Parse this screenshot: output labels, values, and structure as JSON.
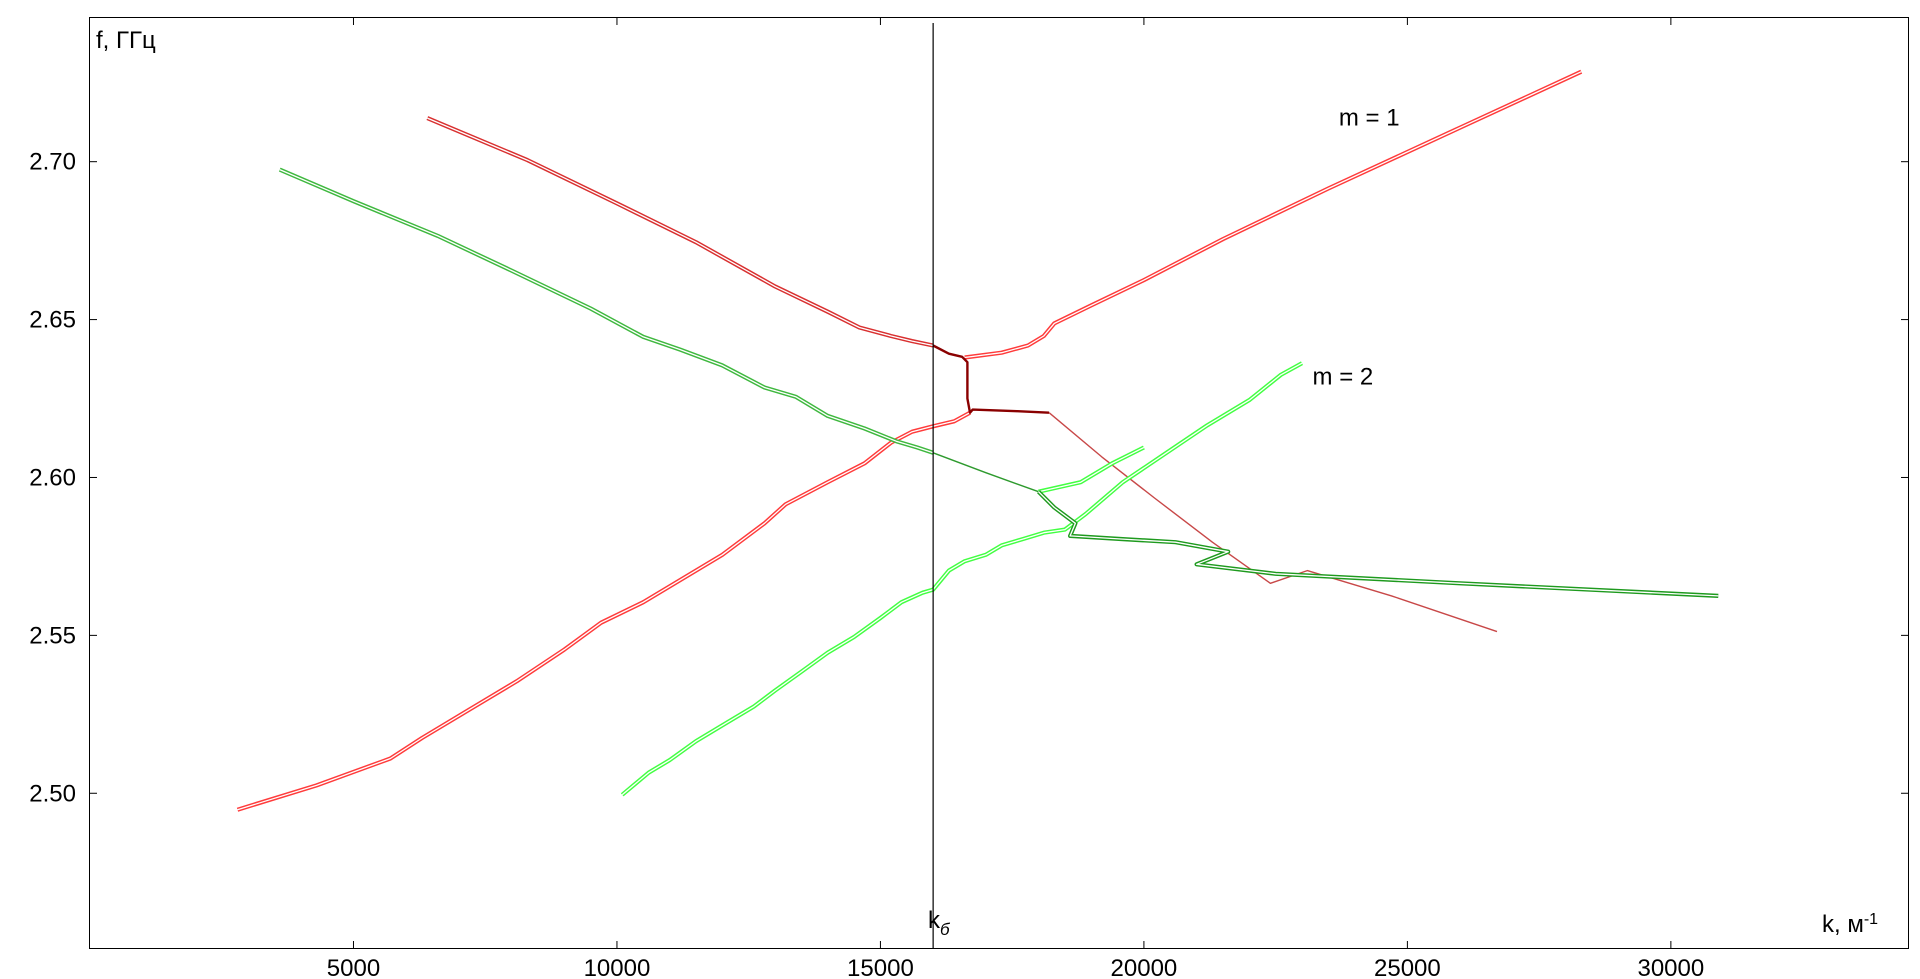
{
  "chart_data": {
    "type": "line",
    "ylabel": "f, ГГц",
    "xlabel": "k, м",
    "xlabel_sup": "-1",
    "xlim": [
      0,
      34500
    ],
    "ylim": [
      2.451,
      2.7455
    ],
    "xticks": [
      5000,
      10000,
      15000,
      20000,
      25000,
      30000
    ],
    "xtick_labels": [
      "5000",
      "10000",
      "15000",
      "20000",
      "25000",
      "30000"
    ],
    "yticks": [
      2.5,
      2.55,
      2.6,
      2.65,
      2.7
    ],
    "ytick_labels": [
      "2.50",
      "2.55",
      "2.60",
      "2.65",
      "2.70"
    ],
    "grid": false,
    "vline": {
      "x": 16000,
      "label": "k",
      "label_sub": "б"
    },
    "annotations": [
      {
        "text": "m = 1",
        "x": 23700,
        "y": 2.7115
      },
      {
        "text": "m = 2",
        "x": 23200,
        "y": 2.6294
      }
    ],
    "series": [
      {
        "color": "#ff3b3b",
        "style": "double",
        "points": [
          [
            2800,
            2.4948
          ],
          [
            4300,
            2.5025
          ],
          [
            5700,
            2.511
          ],
          [
            6300,
            2.5175
          ],
          [
            7200,
            2.5265
          ],
          [
            8100,
            2.5355
          ],
          [
            9000,
            2.5455
          ],
          [
            9700,
            2.554
          ],
          [
            10500,
            2.5605
          ],
          [
            11200,
            2.5675
          ],
          [
            12000,
            2.5755
          ],
          [
            12800,
            2.5855
          ],
          [
            13200,
            2.5915
          ],
          [
            14000,
            2.5985
          ],
          [
            14700,
            2.6045
          ],
          [
            15200,
            2.611
          ],
          [
            15600,
            2.6145
          ],
          [
            16000,
            2.6162
          ],
          [
            16400,
            2.6178
          ],
          [
            16700,
            2.6205
          ]
        ]
      },
      {
        "color": "#d93030",
        "style": "double",
        "points": [
          [
            6400,
            2.7138
          ],
          [
            8300,
            2.7005
          ],
          [
            10000,
            2.6868
          ],
          [
            11500,
            2.6745
          ],
          [
            13000,
            2.6605
          ],
          [
            14000,
            2.6525
          ],
          [
            14600,
            2.6475
          ],
          [
            15200,
            2.6448
          ],
          [
            15600,
            2.6432
          ],
          [
            16000,
            2.6418
          ]
        ]
      },
      {
        "color": "#ff3b3b",
        "style": "double",
        "points": [
          [
            16600,
            2.638
          ],
          [
            17300,
            2.6395
          ],
          [
            17800,
            2.6418
          ],
          [
            18100,
            2.6448
          ],
          [
            18300,
            2.6488
          ],
          [
            19000,
            2.6545
          ],
          [
            20000,
            2.6625
          ],
          [
            21500,
            2.6755
          ],
          [
            23500,
            2.6915
          ],
          [
            26000,
            2.7108
          ],
          [
            28300,
            2.7285
          ]
        ]
      },
      {
        "color": "#8a0000",
        "style": "thin-dark",
        "points": [
          [
            16000,
            2.6418
          ],
          [
            16300,
            2.6392
          ],
          [
            16550,
            2.6382
          ],
          [
            16650,
            2.6365
          ],
          [
            16650,
            2.625
          ],
          [
            16700,
            2.6205
          ],
          [
            16750,
            2.6215
          ],
          [
            17600,
            2.621
          ],
          [
            18200,
            2.6205
          ]
        ]
      },
      {
        "color": "#c84848",
        "style": "thin",
        "points": [
          [
            18200,
            2.6205
          ],
          [
            19200,
            2.6065
          ],
          [
            20200,
            2.5935
          ],
          [
            21300,
            2.5795
          ],
          [
            22400,
            2.5665
          ],
          [
            23100,
            2.5705
          ],
          [
            24700,
            2.5625
          ],
          [
            26700,
            2.5512
          ]
        ]
      },
      {
        "color": "#3fb83f",
        "style": "double",
        "points": [
          [
            3600,
            2.6975
          ],
          [
            5000,
            2.6875
          ],
          [
            6600,
            2.6765
          ],
          [
            8000,
            2.6655
          ],
          [
            9500,
            2.6535
          ],
          [
            10500,
            2.6445
          ],
          [
            11200,
            2.6405
          ],
          [
            12000,
            2.6355
          ],
          [
            12800,
            2.6285
          ],
          [
            13400,
            2.6255
          ],
          [
            14000,
            2.6195
          ],
          [
            14700,
            2.6155
          ],
          [
            15300,
            2.6115
          ],
          [
            15700,
            2.6095
          ],
          [
            16000,
            2.6078
          ]
        ]
      },
      {
        "color": "#2e9a2e",
        "style": "thin",
        "points": [
          [
            16000,
            2.6078
          ],
          [
            17000,
            2.6015
          ],
          [
            18000,
            2.5955
          ]
        ]
      },
      {
        "color": "#42ff42",
        "style": "double",
        "points": [
          [
            10100,
            2.4995
          ],
          [
            10600,
            2.5065
          ],
          [
            11000,
            2.5105
          ],
          [
            11500,
            2.5165
          ],
          [
            12100,
            2.5225
          ],
          [
            12600,
            2.5275
          ],
          [
            13000,
            2.5325
          ],
          [
            13500,
            2.5385
          ],
          [
            14000,
            2.5445
          ],
          [
            14500,
            2.5495
          ],
          [
            15000,
            2.5555
          ],
          [
            15400,
            2.5605
          ],
          [
            15800,
            2.5635
          ],
          [
            16000,
            2.5645
          ],
          [
            16300,
            2.5705
          ],
          [
            16600,
            2.5735
          ],
          [
            17000,
            2.5755
          ],
          [
            17300,
            2.5785
          ],
          [
            17700,
            2.5805
          ],
          [
            18100,
            2.5825
          ],
          [
            18500,
            2.5835
          ],
          [
            18900,
            2.5885
          ],
          [
            19600,
            2.5985
          ],
          [
            20400,
            2.6075
          ],
          [
            21200,
            2.6165
          ],
          [
            22000,
            2.6245
          ],
          [
            22600,
            2.6325
          ],
          [
            23000,
            2.6362
          ]
        ]
      },
      {
        "color": "#42ff42",
        "style": "double",
        "points": [
          [
            18000,
            2.5955
          ],
          [
            18800,
            2.5985
          ],
          [
            19400,
            2.6045
          ],
          [
            20000,
            2.6095
          ]
        ]
      },
      {
        "color": "#1e9a1e",
        "style": "double",
        "points": [
          [
            18000,
            2.5955
          ],
          [
            18300,
            2.5905
          ],
          [
            18700,
            2.5855
          ],
          [
            18600,
            2.5815
          ],
          [
            19600,
            2.5805
          ],
          [
            20600,
            2.5795
          ],
          [
            21600,
            2.5765
          ],
          [
            21000,
            2.5725
          ],
          [
            22500,
            2.5695
          ],
          [
            26000,
            2.5665
          ],
          [
            30900,
            2.5625
          ]
        ]
      }
    ]
  }
}
